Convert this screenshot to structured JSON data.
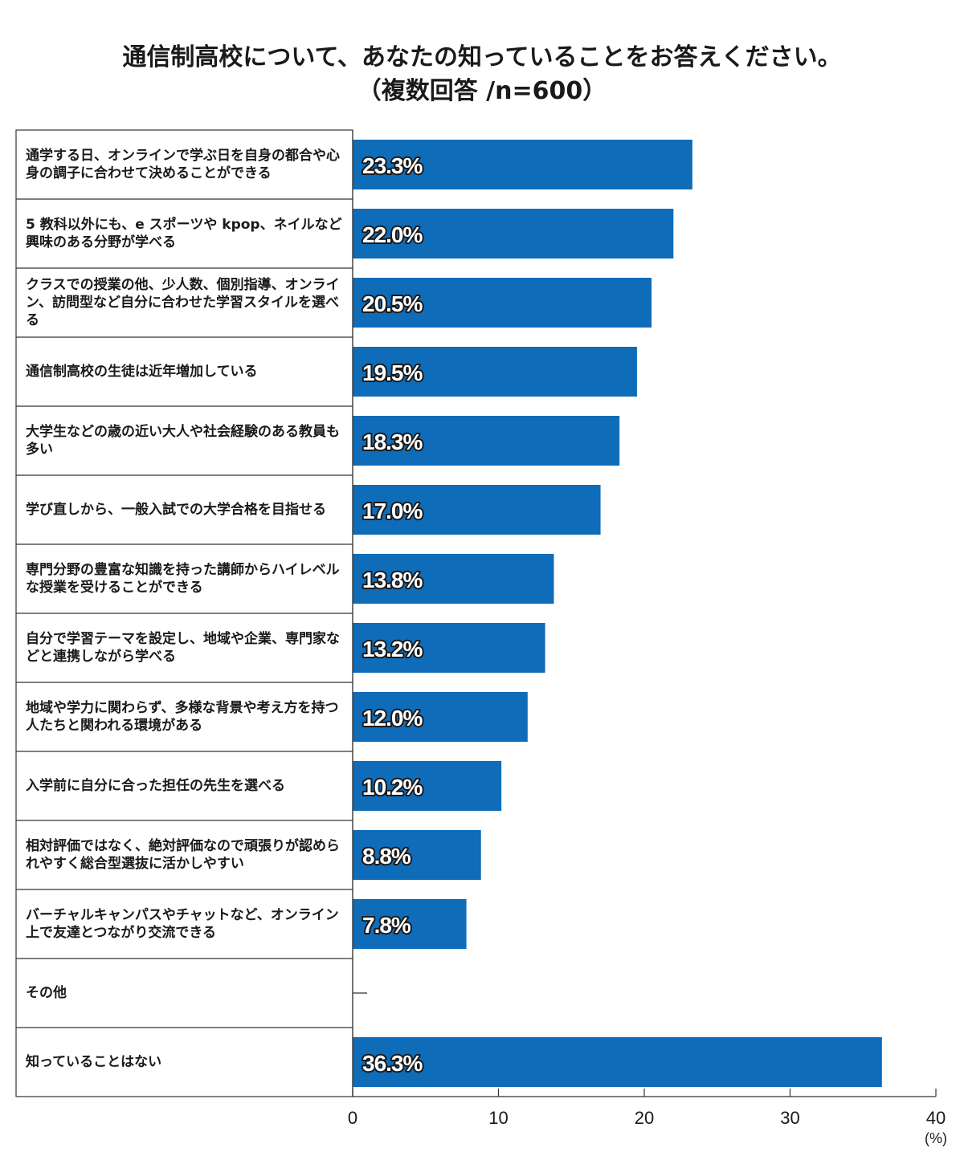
{
  "title": {
    "line1": "通信制高校について、あなたの知っていることをお答えください。",
    "line2": "（複数回答 /n=600）"
  },
  "colors": {
    "bar": "#0e6cb8",
    "bar_label_fill": "#ffffff",
    "bar_label_stroke": "#1a1a1a",
    "axis": "#333333"
  },
  "chart_data": {
    "type": "bar",
    "orientation": "horizontal",
    "categories": [
      "通学する日、オンラインで学ぶ日を自身の都合や心身の調子に合わせて決めることができる",
      "5 教科以外にも、e スポーツや kpop、ネイルなど興味のある分野が学べる",
      "クラスでの授業の他、少人数、個別指導、オンライン、訪問型など自分に合わせた学習スタイルを選べる",
      "通信制高校の生徒は近年増加している",
      "大学生などの歳の近い大人や社会経験のある教員も多い",
      "学び直しから、一般入試での大学合格を目指せる",
      "専門分野の豊富な知識を持った講師からハイレベルな授業を受けることができる",
      "自分で学習テーマを設定し、地域や企業、専門家などと連携しながら学べる",
      "地域や学力に関わらず、多様な背景や考え方を持つ人たちと関われる環境がある",
      "入学前に自分に合った担任の先生を選べる",
      "相対評価ではなく、絶対評価なので頑張りが認められやすく総合型選抜に活かしやすい",
      "バーチャルキャンパスやチャットなど、オンライン上で友達とつながり交流できる",
      "その他",
      "知っていることはない"
    ],
    "values": [
      23.3,
      22.0,
      20.5,
      19.5,
      18.3,
      17.0,
      13.8,
      13.2,
      12.0,
      10.2,
      8.8,
      7.8,
      0,
      36.3
    ],
    "value_labels": [
      "23.3%",
      "22.0%",
      "20.5%",
      "19.5%",
      "18.3%",
      "17.0%",
      "13.8%",
      "13.2%",
      "12.0%",
      "10.2%",
      "8.8%",
      "7.8%",
      "",
      "36.3%"
    ],
    "xlim": [
      0,
      40
    ],
    "ticks": [
      0,
      10,
      20,
      30,
      40
    ],
    "tick_labels": [
      "0",
      "10",
      "20",
      "30",
      "40"
    ],
    "unit_label": "(%)",
    "grid": false,
    "legend": "none"
  }
}
